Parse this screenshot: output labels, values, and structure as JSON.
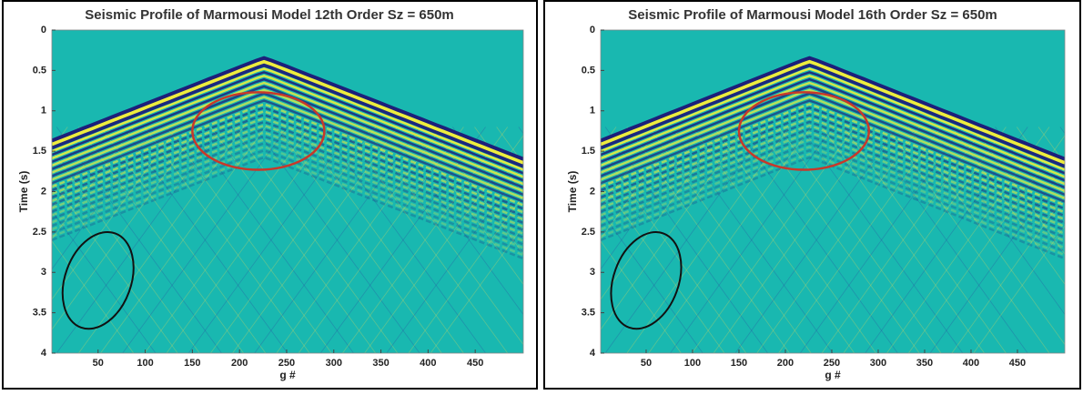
{
  "chart_data": [
    {
      "type": "seismic-image",
      "title": "Seismic Profile of Marmousi Model 12th Order Sz = 650m",
      "x_label": "g #",
      "y_label": "Time (s)",
      "xlim": [
        1,
        501
      ],
      "ylim": [
        0,
        4
      ],
      "xticks": [
        50,
        100,
        150,
        200,
        250,
        300,
        350,
        400,
        450
      ],
      "yticks": [
        0,
        0.5,
        1,
        1.5,
        2,
        2.5,
        3,
        3.5,
        4
      ],
      "y_inverted": true
    },
    {
      "type": "seismic-image",
      "title": "Seismic Profile of Marmousi Model 16th Order Sz = 650m",
      "x_label": "g #",
      "y_label": "Time (s)",
      "xlim": [
        1,
        501
      ],
      "ylim": [
        0,
        4
      ],
      "xticks": [
        50,
        100,
        150,
        200,
        250,
        300,
        350,
        400,
        450
      ],
      "yticks": [
        0,
        0.5,
        1,
        1.5,
        2,
        2.5,
        3,
        3.5,
        4
      ],
      "y_inverted": true
    }
  ]
}
